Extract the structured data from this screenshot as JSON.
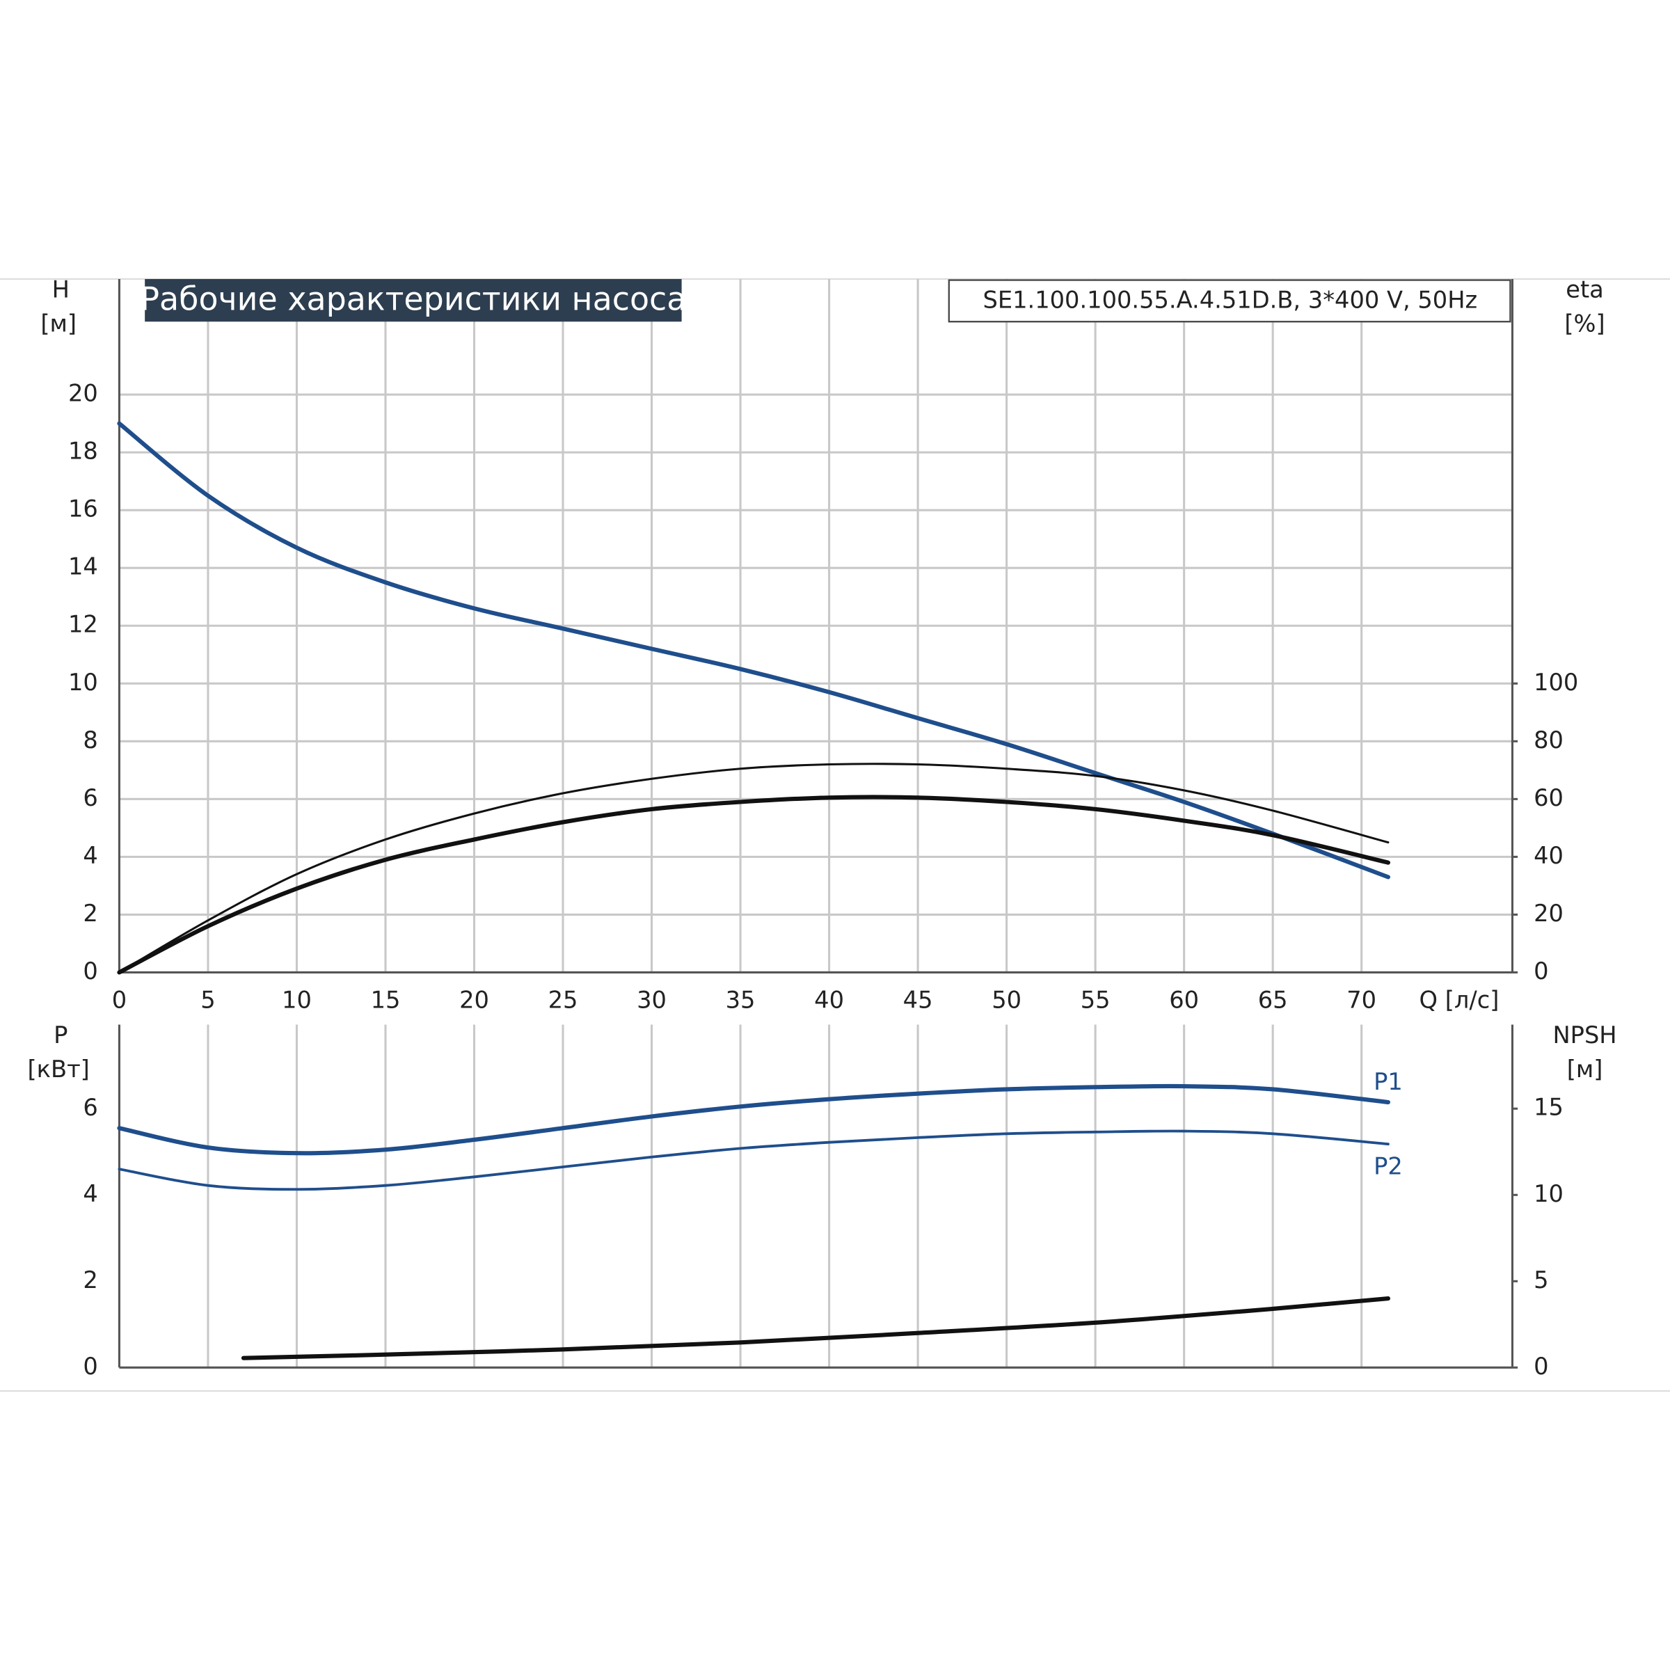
{
  "chart_data": [
    {
      "type": "line",
      "title": "Рабочие характеристики насоса",
      "subtitle": "SE1.100.100.55.A.4.51D.B, 3*400 V, 50Hz",
      "ylabel": "H",
      "yunit": "[м]",
      "y2label": "eta",
      "y2unit": "[%]",
      "xlabel": "Q [л/с]",
      "xlim": [
        0,
        78.5
      ],
      "xticks": [
        0,
        5,
        10,
        15,
        20,
        25,
        30,
        35,
        40,
        45,
        50,
        55,
        60,
        65,
        70
      ],
      "ylim": [
        0,
        24
      ],
      "yticks": [
        0,
        2,
        4,
        6,
        8,
        10,
        12,
        14,
        16,
        18,
        20
      ],
      "y2lim": [
        0,
        240
      ],
      "y2ticks": [
        0,
        20,
        40,
        60,
        80,
        100
      ],
      "grid": "both",
      "series": [
        {
          "color": "#1f4e8c",
          "width": 4,
          "x": [
            0,
            5,
            10,
            15,
            20,
            25,
            30,
            35,
            40,
            45,
            50,
            55,
            60,
            65,
            71.5
          ],
          "values": [
            19,
            16.5,
            14.7,
            13.5,
            12.6,
            11.9,
            11.2,
            10.5,
            9.7,
            8.8,
            7.9,
            6.9,
            5.9,
            4.8,
            3.3
          ]
        },
        {
          "color": "#111111",
          "width": 2,
          "axis": "y2",
          "x": [
            0,
            5,
            10,
            15,
            20,
            25,
            30,
            35,
            40,
            45,
            50,
            55,
            60,
            65,
            71.5
          ],
          "values": [
            0,
            18,
            34,
            46,
            55,
            62,
            67,
            70.5,
            72,
            72,
            70.5,
            68,
            63,
            56,
            45
          ]
        },
        {
          "color": "#111111",
          "width": 4,
          "axis": "y2",
          "x": [
            0,
            5,
            10,
            15,
            20,
            25,
            30,
            35,
            40,
            45,
            50,
            55,
            60,
            65,
            71.5
          ],
          "values": [
            0,
            16,
            29,
            39,
            46,
            52,
            56.5,
            59,
            60.5,
            60.5,
            59,
            56.5,
            52.5,
            47.5,
            38
          ]
        }
      ]
    },
    {
      "type": "line",
      "ylabel": "P",
      "yunit": "[кВт]",
      "y2label": "NPSH",
      "y2unit": "[м]",
      "xlim": [
        0,
        78.5
      ],
      "ylim": [
        0,
        7.95
      ],
      "yticks": [
        0,
        2,
        4,
        6
      ],
      "y2lim": [
        0,
        19.87
      ],
      "y2ticks": [
        0,
        5,
        10,
        15
      ],
      "grid": "x",
      "series": [
        {
          "name": "P1",
          "color": "#1f4e8c",
          "width": 4,
          "x": [
            0,
            5,
            10,
            15,
            20,
            25,
            30,
            35,
            40,
            45,
            50,
            55,
            60,
            65,
            71.5
          ],
          "values": [
            5.55,
            5.1,
            4.97,
            5.05,
            5.28,
            5.55,
            5.82,
            6.05,
            6.22,
            6.35,
            6.45,
            6.5,
            6.52,
            6.45,
            6.15
          ]
        },
        {
          "name": "P2",
          "color": "#1f4e8c",
          "width": 2.5,
          "x": [
            0,
            5,
            10,
            15,
            20,
            25,
            30,
            35,
            40,
            45,
            50,
            55,
            60,
            65,
            71.5
          ],
          "values": [
            4.6,
            4.22,
            4.13,
            4.22,
            4.42,
            4.65,
            4.88,
            5.08,
            5.22,
            5.33,
            5.42,
            5.46,
            5.48,
            5.42,
            5.18
          ]
        },
        {
          "color": "#111111",
          "width": 4,
          "axis": "y2",
          "x": [
            7,
            15,
            25,
            35,
            45,
            55,
            65,
            71.5
          ],
          "values": [
            0.55,
            0.75,
            1.05,
            1.45,
            2.0,
            2.6,
            3.4,
            4.0
          ]
        }
      ]
    }
  ]
}
